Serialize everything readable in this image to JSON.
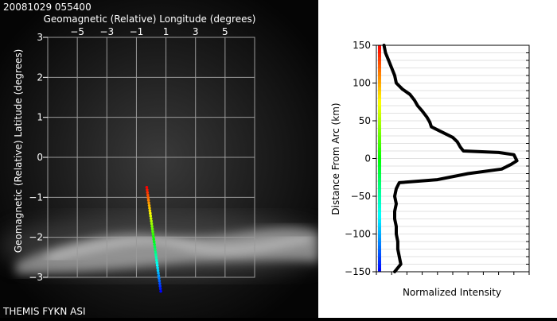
{
  "header": {
    "timestamp": "20081029 055400"
  },
  "footer": {
    "station": "THEMIS FYKN ASI"
  },
  "colors": {
    "background": "#000000",
    "grid": "#9a9a9a",
    "profile": "#000000"
  },
  "chart_data": [
    {
      "type": "scatter",
      "description_role": "all-sky image map with arc-normal track",
      "xlabel": "Geomagnetic (Relative) Longitude (degrees)",
      "ylabel": "Geomagnetic (Relative) Latitude (degrees)",
      "xlim": [
        -7,
        7
      ],
      "ylim": [
        -3,
        3
      ],
      "x_ticks": [
        -5,
        -3,
        -1,
        1,
        3,
        5
      ],
      "y_ticks": [
        3,
        2,
        1,
        0,
        -1,
        -2,
        -3
      ],
      "grid": true,
      "track": {
        "start": [
          -0.3,
          -0.75
        ],
        "end": [
          0.65,
          -3.35
        ],
        "colormap": "rainbow"
      }
    },
    {
      "type": "line",
      "xlabel": "Normalized Intensity",
      "ylabel": "Distance From Arc (km)",
      "xlim": [
        0,
        1
      ],
      "ylim": [
        -150,
        150
      ],
      "y_ticks": [
        150,
        100,
        50,
        0,
        -50,
        -100,
        -150
      ],
      "grid": true,
      "series": [
        {
          "values": [
            [
              0.05,
              150
            ],
            [
              0.06,
              140
            ],
            [
              0.08,
              130
            ],
            [
              0.1,
              120
            ],
            [
              0.12,
              110
            ],
            [
              0.13,
              100
            ],
            [
              0.17,
              92
            ],
            [
              0.22,
              85
            ],
            [
              0.25,
              77
            ],
            [
              0.27,
              70
            ],
            [
              0.3,
              63
            ],
            [
              0.33,
              55
            ],
            [
              0.35,
              48
            ],
            [
              0.36,
              42
            ],
            [
              0.4,
              38
            ],
            [
              0.45,
              33
            ],
            [
              0.5,
              28
            ],
            [
              0.53,
              22
            ],
            [
              0.55,
              15
            ],
            [
              0.57,
              10
            ],
            [
              0.8,
              8
            ],
            [
              0.9,
              5
            ],
            [
              0.92,
              -3
            ],
            [
              0.88,
              -8
            ],
            [
              0.82,
              -14
            ],
            [
              0.6,
              -20
            ],
            [
              0.4,
              -28
            ],
            [
              0.15,
              -32
            ],
            [
              0.13,
              -40
            ],
            [
              0.12,
              -50
            ],
            [
              0.13,
              -60
            ],
            [
              0.12,
              -70
            ],
            [
              0.12,
              -80
            ],
            [
              0.13,
              -90
            ],
            [
              0.13,
              -100
            ],
            [
              0.14,
              -110
            ],
            [
              0.14,
              -120
            ],
            [
              0.15,
              -130
            ],
            [
              0.16,
              -140
            ],
            [
              0.12,
              -150
            ]
          ]
        }
      ]
    }
  ]
}
